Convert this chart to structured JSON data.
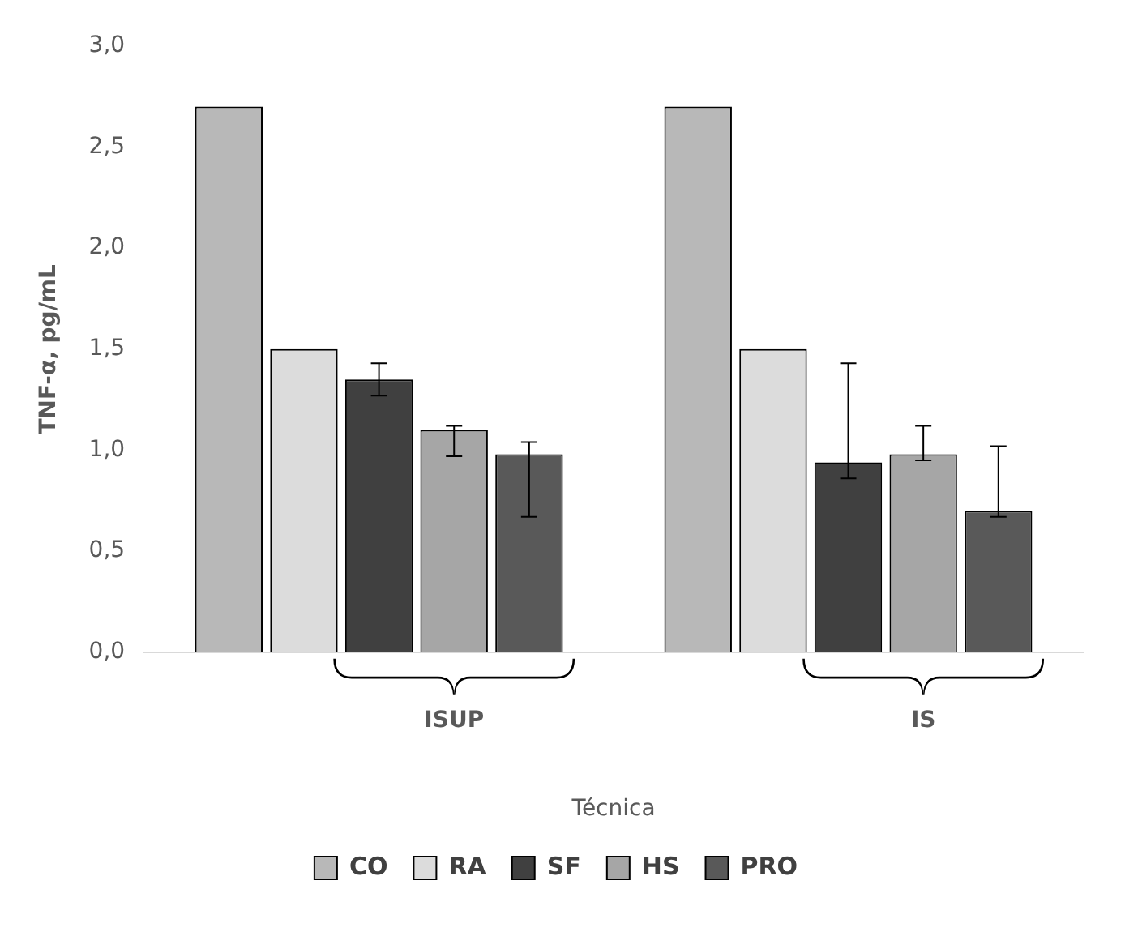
{
  "chart_data": {
    "type": "bar",
    "xlabel": "Técnica",
    "ylabel": "TNF-α, pg/mL",
    "categories": [
      "ISUP",
      "IS"
    ],
    "series": [
      {
        "name": "CO",
        "color": "#b8b8b8",
        "values": [
          2.7,
          2.7
        ]
      },
      {
        "name": "RA",
        "color": "#dcdcdc",
        "values": [
          1.5,
          1.5
        ]
      },
      {
        "name": "SF",
        "color": "#404040",
        "values": [
          1.35,
          0.94
        ],
        "errors": [
          [
            1.27,
            1.43
          ],
          [
            0.86,
            1.43
          ]
        ]
      },
      {
        "name": "HS",
        "color": "#a6a6a6",
        "values": [
          1.1,
          0.98
        ],
        "errors": [
          [
            0.97,
            1.12
          ],
          [
            0.95,
            1.12
          ]
        ]
      },
      {
        "name": "PRO",
        "color": "#595959",
        "values": [
          0.98,
          0.7
        ],
        "errors": [
          [
            0.67,
            1.04
          ],
          [
            0.67,
            1.02
          ]
        ]
      }
    ],
    "ylim": [
      0,
      3
    ],
    "yticks": [
      {
        "value": 0,
        "label": "0,0"
      },
      {
        "value": 0.5,
        "label": "0,5"
      },
      {
        "value": 1,
        "label": "1,0"
      },
      {
        "value": 1.5,
        "label": "1,5"
      },
      {
        "value": 2,
        "label": "2,0"
      },
      {
        "value": 2.5,
        "label": "2,5"
      },
      {
        "value": 3,
        "label": "3,0"
      }
    ],
    "grid": false,
    "legend": "bottom"
  }
}
